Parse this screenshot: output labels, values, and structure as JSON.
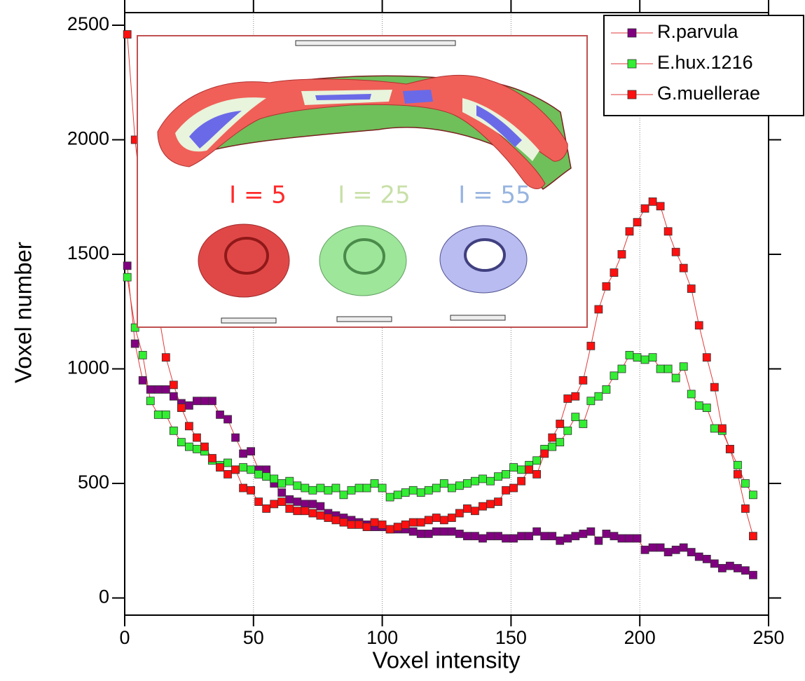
{
  "chart_data": {
    "type": "line",
    "x_label": "Voxel intensity",
    "y_label": "Voxel number",
    "xlim": [
      0,
      250
    ],
    "ylim": [
      -75,
      2555
    ],
    "xticks": [
      0,
      50,
      100,
      150,
      200,
      250
    ],
    "yticks": [
      0,
      500,
      1000,
      1500,
      2000,
      2500
    ],
    "grid": "x",
    "legend": "top-right",
    "line_color": "#e03a3a",
    "x": [
      1,
      4,
      7,
      10,
      13,
      16,
      19,
      22,
      25,
      28,
      31,
      34,
      37,
      40,
      43,
      46,
      49,
      52,
      55,
      58,
      61,
      64,
      67,
      70,
      73,
      76,
      79,
      82,
      85,
      88,
      91,
      94,
      97,
      100,
      103,
      106,
      109,
      112,
      115,
      118,
      121,
      124,
      127,
      130,
      133,
      136,
      139,
      142,
      145,
      148,
      151,
      154,
      157,
      160,
      163,
      166,
      169,
      172,
      175,
      178,
      181,
      184,
      187,
      190,
      193,
      196,
      199,
      202,
      205,
      208,
      211,
      214,
      217,
      220,
      223,
      226,
      229,
      232,
      235,
      238,
      241,
      244
    ],
    "series": [
      {
        "name": "R.parvula",
        "color": "#800080",
        "values": [
          1450,
          1110,
          950,
          910,
          910,
          910,
          880,
          850,
          840,
          860,
          860,
          860,
          800,
          780,
          700,
          630,
          640,
          560,
          560,
          500,
          460,
          430,
          420,
          410,
          410,
          400,
          370,
          360,
          350,
          340,
          330,
          320,
          310,
          310,
          300,
          300,
          300,
          290,
          280,
          280,
          290,
          290,
          290,
          280,
          270,
          270,
          260,
          270,
          270,
          260,
          260,
          270,
          270,
          290,
          270,
          270,
          250,
          260,
          270,
          280,
          290,
          250,
          280,
          270,
          260,
          260,
          260,
          210,
          220,
          220,
          200,
          210,
          220,
          200,
          180,
          170,
          150,
          130,
          140,
          130,
          120,
          100
        ]
      },
      {
        "name": "E.hux.1216",
        "color": "#33ee33",
        "values": [
          1400,
          1180,
          1060,
          860,
          800,
          800,
          730,
          680,
          660,
          650,
          640,
          600,
          580,
          590,
          560,
          570,
          560,
          540,
          530,
          520,
          500,
          510,
          490,
          480,
          470,
          480,
          470,
          480,
          450,
          470,
          480,
          480,
          500,
          480,
          440,
          450,
          460,
          470,
          460,
          470,
          480,
          500,
          480,
          490,
          500,
          510,
          520,
          510,
          530,
          540,
          570,
          560,
          580,
          600,
          650,
          660,
          680,
          730,
          790,
          760,
          860,
          880,
          910,
          970,
          1000,
          1060,
          1050,
          1040,
          1050,
          1000,
          1000,
          960,
          1010,
          890,
          840,
          830,
          740,
          730,
          650,
          580,
          500,
          450
        ]
      },
      {
        "name": "G.muellerae",
        "color": "#ff1010",
        "values": [
          2460,
          2000,
          1700,
          1450,
          1250,
          1050,
          930,
          830,
          750,
          700,
          660,
          610,
          570,
          540,
          560,
          480,
          470,
          420,
          390,
          410,
          420,
          390,
          380,
          380,
          370,
          360,
          350,
          340,
          330,
          320,
          320,
          310,
          330,
          320,
          300,
          310,
          320,
          330,
          330,
          340,
          350,
          340,
          350,
          370,
          390,
          380,
          400,
          410,
          420,
          470,
          480,
          510,
          560,
          540,
          630,
          700,
          760,
          870,
          880,
          950,
          1100,
          1260,
          1360,
          1420,
          1500,
          1600,
          1640,
          1700,
          1730,
          1710,
          1600,
          1510,
          1440,
          1350,
          1190,
          1050,
          920,
          740,
          650,
          540,
          390,
          270
        ]
      }
    ],
    "annotations": [
      {
        "text": "I = 5",
        "color": "#ff2a2a"
      },
      {
        "text": "I = 25",
        "color": "#c8e0a8"
      },
      {
        "text": "I = 55",
        "color": "#98b4e0"
      }
    ]
  }
}
